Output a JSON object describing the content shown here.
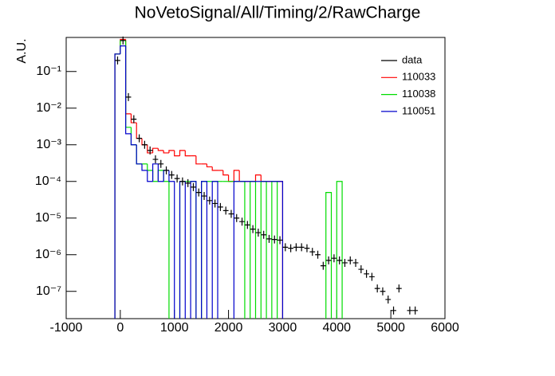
{
  "chart_data": {
    "type": "histogram",
    "title": "NoVetoSignal/All/Timing/2/RawCharge",
    "ylabel": "A.U.",
    "log_y": true,
    "legend": "top-right",
    "xlim": [
      -1000,
      6000
    ],
    "xticks": [
      -1000,
      0,
      1000,
      2000,
      3000,
      4000,
      5000,
      6000
    ],
    "ylim": [
      1.8e-08,
      0.85
    ],
    "yticks": [
      {
        "value": 1e-07,
        "label": "10⁻⁷"
      },
      {
        "value": 1e-06,
        "label": "10⁻⁶"
      },
      {
        "value": 1e-05,
        "label": "10⁻⁵"
      },
      {
        "value": 0.0001,
        "label": "10⁻⁴"
      },
      {
        "value": 0.001,
        "label": "10⁻³"
      },
      {
        "value": 0.01,
        "label": "10⁻²"
      },
      {
        "value": 0.1,
        "label": "10⁻¹"
      }
    ],
    "bins": [
      -100,
      0,
      100,
      200,
      300,
      400,
      500,
      600,
      700,
      800,
      900,
      1000,
      1100,
      1200,
      1300,
      1400,
      1500,
      1600,
      1700,
      1800,
      1900,
      2000,
      2100,
      2200,
      2300,
      2400,
      2500,
      2600,
      2700,
      2800,
      2900,
      3000,
      3100,
      3200,
      3300,
      3400,
      3500,
      3600,
      3700,
      3800,
      3900,
      4000,
      4100,
      4200,
      4300,
      4400,
      4500,
      4600,
      4700,
      4800,
      4900,
      5000,
      5100,
      5200,
      5300,
      5400,
      5500
    ],
    "series": [
      {
        "name": "data",
        "color": "#000000",
        "style": "points",
        "values": [
          0.2,
          0.7,
          0.02,
          0.005,
          0.0015,
          0.001,
          0.0007,
          0.0004,
          0.0003,
          0.0002,
          0.00015,
          0.00012,
          0.0001,
          9e-05,
          7e-05,
          5e-05,
          4e-05,
          3e-05,
          2.5e-05,
          2e-05,
          1.6e-05,
          1.3e-05,
          1e-05,
          8e-06,
          6.5e-06,
          5e-06,
          4e-06,
          3.5e-06,
          2.7e-06,
          2.6e-06,
          2.5e-06,
          1.6e-06,
          1.5e-06,
          1.6e-06,
          1.6e-06,
          1.5e-06,
          1.2e-06,
          1e-06,
          5e-07,
          7e-07,
          8e-07,
          7e-07,
          6e-07,
          7e-07,
          6e-07,
          4e-07,
          3e-07,
          2.5e-07,
          1.2e-07,
          1e-07,
          6e-08,
          3e-08,
          1.2e-07,
          null,
          3e-08,
          3e-08
        ]
      },
      {
        "name": "110033",
        "color": "#ff0000",
        "style": "step",
        "values": [
          0.3,
          0.75,
          0.007,
          0.004,
          0.0015,
          0.001,
          0.0006,
          0.0008,
          0.0007,
          0.0006,
          0.0007,
          0.0005,
          0.0007,
          0.0005,
          0.0005,
          0.0003,
          0.0003,
          0.00025,
          0.0002,
          0.0002,
          0.00015,
          0.0001,
          0.0002,
          0.0001,
          0.0001,
          0.0001,
          0.00015,
          0.0001,
          0.0001,
          0.0001,
          0.0001,
          null,
          null,
          null,
          null,
          null,
          null,
          null,
          null,
          null,
          null,
          null,
          null,
          null,
          null,
          null,
          null,
          null,
          null,
          null,
          null,
          null,
          null,
          null,
          null,
          null
        ]
      },
      {
        "name": "110038",
        "color": "#00dd00",
        "style": "step",
        "values": [
          0.3,
          0.7,
          0.003,
          0.001,
          0.0003,
          0.0003,
          0.0002,
          0.0001,
          0.0002,
          0.0001,
          null,
          null,
          0.0001,
          0.0001,
          0.0001,
          null,
          0.0001,
          0.0001,
          0.0001,
          0.0001,
          0.0001,
          0.0001,
          0.0001,
          0.0001,
          null,
          0.0001,
          null,
          0.0001,
          null,
          0.0001,
          null,
          null,
          null,
          null,
          null,
          null,
          null,
          null,
          null,
          5e-05,
          null,
          0.0001,
          null,
          null,
          null,
          null,
          null,
          null,
          null,
          null,
          null,
          null,
          null,
          null,
          null,
          null
        ]
      },
      {
        "name": "110051",
        "color": "#0000cc",
        "style": "step",
        "values": [
          0.3,
          0.5,
          0.002,
          0.001,
          0.0003,
          0.0002,
          0.0001,
          0.0003,
          0.0001,
          0.0002,
          0.0001,
          null,
          0.0001,
          null,
          0.0001,
          null,
          0.0001,
          null,
          0.0001,
          null,
          null,
          null,
          0.0001,
          0.0001,
          0.0001,
          0.0001,
          0.0001,
          0.0001,
          0.0001,
          0.0001,
          0.0001,
          null,
          null,
          null,
          null,
          null,
          null,
          null,
          null,
          null,
          null,
          null,
          null,
          null,
          null,
          null,
          null,
          null,
          null,
          null,
          null,
          null,
          null,
          null,
          null,
          null
        ]
      }
    ]
  }
}
